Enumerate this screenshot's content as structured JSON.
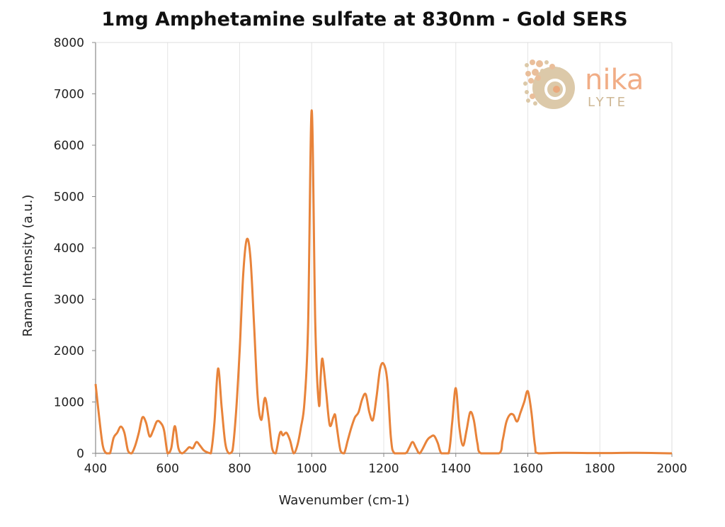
{
  "chart_data": {
    "type": "line",
    "title": "1mg Amphetamine sulfate at 830nm - Gold SERS",
    "xlabel": "Wavenumber (cm-1)",
    "ylabel": "Raman Intensity (a.u.)",
    "xlim": [
      400,
      2000
    ],
    "ylim": [
      0,
      8000
    ],
    "xticks": [
      400,
      600,
      800,
      1000,
      1200,
      1400,
      1600,
      1800,
      2000
    ],
    "yticks": [
      0,
      1000,
      2000,
      3000,
      4000,
      5000,
      6000,
      7000,
      8000
    ],
    "grid": "vertical",
    "line_color": "#E8833A",
    "series": [
      {
        "points": [
          [
            400,
            1350
          ],
          [
            410,
            700
          ],
          [
            420,
            150
          ],
          [
            430,
            0
          ],
          [
            440,
            0
          ],
          [
            450,
            300
          ],
          [
            460,
            400
          ],
          [
            470,
            520
          ],
          [
            480,
            400
          ],
          [
            490,
            50
          ],
          [
            500,
            0
          ],
          [
            510,
            150
          ],
          [
            520,
            400
          ],
          [
            530,
            700
          ],
          [
            540,
            600
          ],
          [
            550,
            330
          ],
          [
            560,
            450
          ],
          [
            570,
            620
          ],
          [
            580,
            600
          ],
          [
            590,
            450
          ],
          [
            600,
            0
          ],
          [
            610,
            100
          ],
          [
            620,
            530
          ],
          [
            630,
            100
          ],
          [
            640,
            0
          ],
          [
            650,
            50
          ],
          [
            660,
            120
          ],
          [
            670,
            100
          ],
          [
            680,
            220
          ],
          [
            690,
            150
          ],
          [
            700,
            60
          ],
          [
            710,
            20
          ],
          [
            720,
            0
          ],
          [
            730,
            600
          ],
          [
            740,
            1650
          ],
          [
            750,
            900
          ],
          [
            760,
            200
          ],
          [
            770,
            0
          ],
          [
            780,
            50
          ],
          [
            790,
            800
          ],
          [
            800,
            2000
          ],
          [
            810,
            3500
          ],
          [
            820,
            4170
          ],
          [
            830,
            3800
          ],
          [
            840,
            2500
          ],
          [
            850,
            1100
          ],
          [
            860,
            650
          ],
          [
            870,
            1080
          ],
          [
            880,
            700
          ],
          [
            890,
            100
          ],
          [
            900,
            0
          ],
          [
            910,
            350
          ],
          [
            915,
            420
          ],
          [
            920,
            350
          ],
          [
            930,
            400
          ],
          [
            940,
            250
          ],
          [
            950,
            0
          ],
          [
            960,
            150
          ],
          [
            970,
            500
          ],
          [
            980,
            1000
          ],
          [
            990,
            2500
          ],
          [
            1000,
            6680
          ],
          [
            1010,
            2500
          ],
          [
            1020,
            950
          ],
          [
            1025,
            1500
          ],
          [
            1030,
            1840
          ],
          [
            1040,
            1200
          ],
          [
            1050,
            550
          ],
          [
            1060,
            700
          ],
          [
            1065,
            750
          ],
          [
            1070,
            500
          ],
          [
            1080,
            50
          ],
          [
            1090,
            0
          ],
          [
            1100,
            250
          ],
          [
            1110,
            500
          ],
          [
            1120,
            700
          ],
          [
            1130,
            800
          ],
          [
            1140,
            1050
          ],
          [
            1150,
            1150
          ],
          [
            1160,
            800
          ],
          [
            1170,
            650
          ],
          [
            1180,
            1100
          ],
          [
            1190,
            1650
          ],
          [
            1200,
            1740
          ],
          [
            1210,
            1400
          ],
          [
            1220,
            300
          ],
          [
            1230,
            0
          ],
          [
            1260,
            0
          ],
          [
            1270,
            100
          ],
          [
            1280,
            220
          ],
          [
            1290,
            100
          ],
          [
            1300,
            0
          ],
          [
            1320,
            250
          ],
          [
            1330,
            320
          ],
          [
            1340,
            340
          ],
          [
            1350,
            200
          ],
          [
            1360,
            0
          ],
          [
            1380,
            0
          ],
          [
            1390,
            600
          ],
          [
            1400,
            1270
          ],
          [
            1410,
            500
          ],
          [
            1420,
            150
          ],
          [
            1430,
            450
          ],
          [
            1440,
            800
          ],
          [
            1450,
            650
          ],
          [
            1460,
            200
          ],
          [
            1470,
            0
          ],
          [
            1520,
            0
          ],
          [
            1530,
            250
          ],
          [
            1540,
            600
          ],
          [
            1550,
            750
          ],
          [
            1560,
            750
          ],
          [
            1570,
            620
          ],
          [
            1580,
            800
          ],
          [
            1590,
            1000
          ],
          [
            1600,
            1210
          ],
          [
            1610,
            800
          ],
          [
            1620,
            150
          ],
          [
            1630,
            0
          ],
          [
            1700,
            10
          ],
          [
            1800,
            5
          ],
          [
            1900,
            10
          ],
          [
            2000,
            0
          ]
        ]
      }
    ]
  },
  "logo": {
    "line1": "nika",
    "line2": "LYTE",
    "color": "#F0A57A",
    "color2": "#C9B08A"
  }
}
